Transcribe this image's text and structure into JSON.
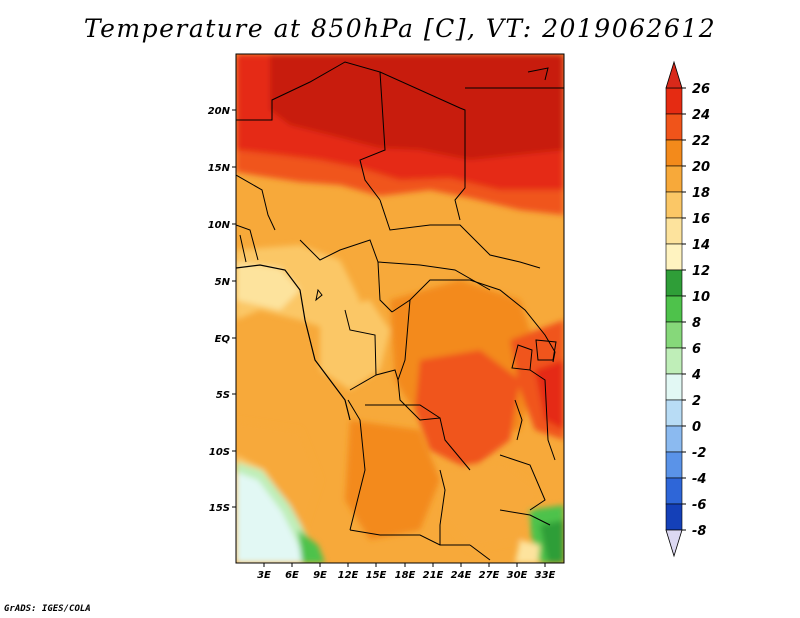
{
  "title": "Temperature at 850hPa [C], VT: 2019062612",
  "credit": "GrADS: IGES/COLA",
  "map": {
    "lat_labels": [
      "20N",
      "15N",
      "10N",
      "5N",
      "EQ",
      "5S",
      "10S",
      "15S"
    ],
    "lon_labels": [
      "3E",
      "6E",
      "9E",
      "12E",
      "15E",
      "18E",
      "21E",
      "24E",
      "27E",
      "30E",
      "33E"
    ]
  },
  "colorbar": {
    "labels": [
      "26",
      "24",
      "22",
      "20",
      "18",
      "16",
      "14",
      "12",
      "10",
      "8",
      "6",
      "4",
      "2",
      "0",
      "-2",
      "-4",
      "-6",
      "-8"
    ],
    "colors": [
      "#c81e0f",
      "#e52b12",
      "#f0541a",
      "#f38a1b",
      "#f7a93a",
      "#fbc766",
      "#fde39d",
      "#fff3c0",
      "#2f9e38",
      "#4ec24b",
      "#86d87a",
      "#bfeeb8",
      "#e2f8f4",
      "#b8dcf5",
      "#8bbaf0",
      "#5a93e8",
      "#2e66d8",
      "#1440b8",
      "#0b1f8a",
      "#0a0a55",
      "#dcd8f2"
    ],
    "top_color": "#d8291a",
    "bottom_color": "#dcd8f2"
  }
}
